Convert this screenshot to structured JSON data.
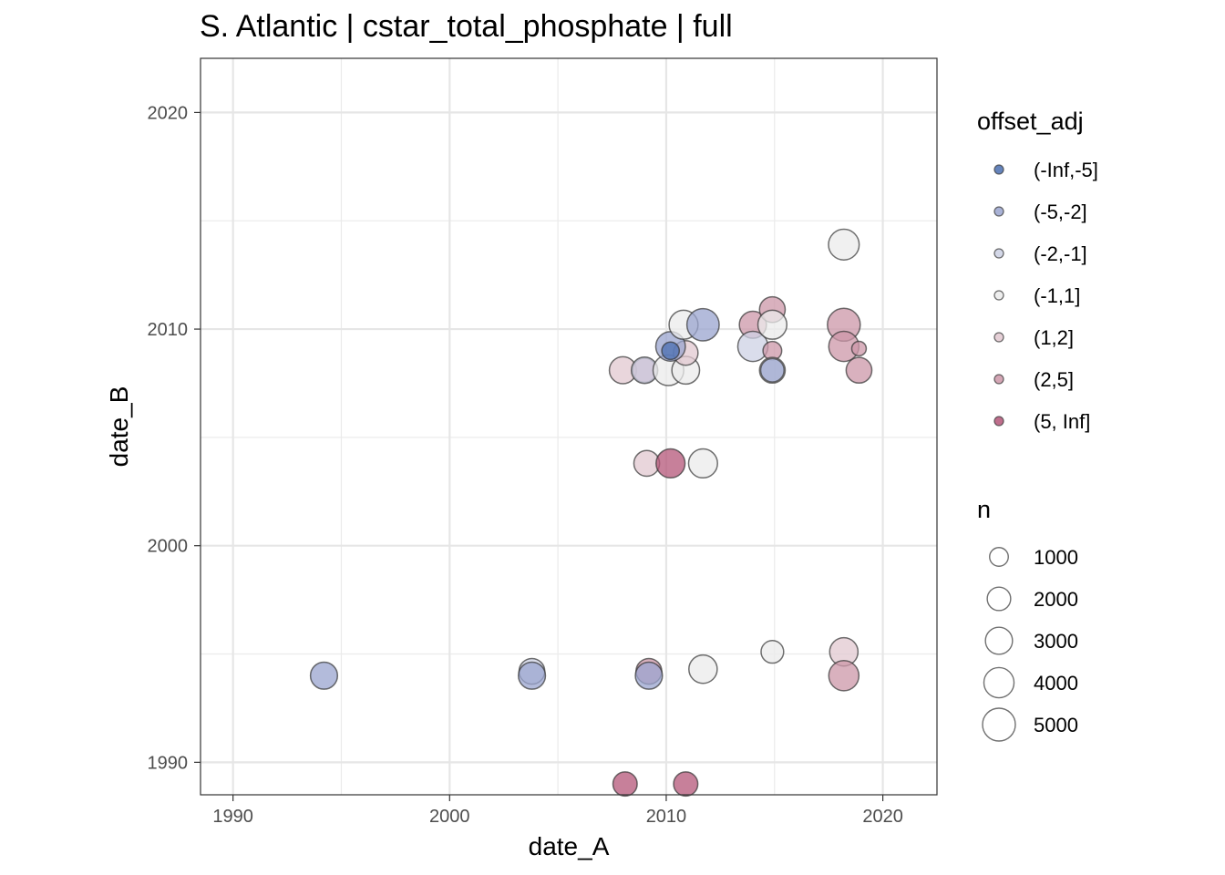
{
  "chart_data": {
    "type": "scatter",
    "title": "S. Atlantic | cstar_total_phosphate | full",
    "xlabel": "date_A",
    "ylabel": "date_B",
    "xlim": [
      1988.5,
      2022.5
    ],
    "ylim": [
      1988.5,
      2022.5
    ],
    "x_ticks": [
      "1990",
      "2000",
      "2010",
      "2020"
    ],
    "y_ticks": [
      "1990",
      "2000",
      "2010",
      "2020"
    ],
    "grid": true,
    "legend_color": {
      "title": "offset_adj",
      "placement": "right",
      "entries": [
        {
          "label": "(-Inf,-5]",
          "color": "#4a6eb0"
        },
        {
          "label": "(-5,-2]",
          "color": "#9aa4cf"
        },
        {
          "label": "(-2,-1]",
          "color": "#cdd1e4"
        },
        {
          "label": "(-1,1]",
          "color": "#ebebeb"
        },
        {
          "label": "(1,2]",
          "color": "#e2c8d0"
        },
        {
          "label": "(2,5]",
          "color": "#cc97a8"
        },
        {
          "label": "(5, Inf]",
          "color": "#b45578"
        }
      ]
    },
    "legend_size": {
      "title": "n",
      "placement": "right",
      "entries": [
        {
          "label": "1000",
          "value": 1000
        },
        {
          "label": "2000",
          "value": 2000
        },
        {
          "label": "3000",
          "value": 3000
        },
        {
          "label": "4000",
          "value": 4000
        },
        {
          "label": "5000",
          "value": 5000
        }
      ]
    },
    "points": [
      {
        "x": 1994.2,
        "y": 1994.0,
        "n": 3000,
        "group": "(-5,-2]"
      },
      {
        "x": 2003.8,
        "y": 1994.2,
        "n": 2600,
        "group": "(-2,-1]"
      },
      {
        "x": 2003.8,
        "y": 1994.0,
        "n": 3000,
        "group": "(-5,-2]"
      },
      {
        "x": 2008.1,
        "y": 1989.0,
        "n": 2200,
        "group": "(5, Inf]"
      },
      {
        "x": 2010.9,
        "y": 1989.0,
        "n": 2200,
        "group": "(5, Inf]"
      },
      {
        "x": 2009.2,
        "y": 1994.2,
        "n": 2600,
        "group": "(2,5]"
      },
      {
        "x": 2009.2,
        "y": 1994.0,
        "n": 3000,
        "group": "(-5,-2]"
      },
      {
        "x": 2011.7,
        "y": 1994.3,
        "n": 3400,
        "group": "(-1,1]"
      },
      {
        "x": 2014.9,
        "y": 1995.1,
        "n": 1800,
        "group": "(-1,1]"
      },
      {
        "x": 2018.2,
        "y": 1995.1,
        "n": 3400,
        "group": "(1,2]"
      },
      {
        "x": 2018.2,
        "y": 1994.0,
        "n": 4000,
        "group": "(2,5]"
      },
      {
        "x": 2009.1,
        "y": 2003.8,
        "n": 2600,
        "group": "(1,2]"
      },
      {
        "x": 2010.2,
        "y": 2003.8,
        "n": 3600,
        "group": "(5, Inf]"
      },
      {
        "x": 2011.7,
        "y": 2003.8,
        "n": 3600,
        "group": "(-1,1]"
      },
      {
        "x": 2008.0,
        "y": 2008.1,
        "n": 3000,
        "group": "(1,2]"
      },
      {
        "x": 2009.0,
        "y": 2008.1,
        "n": 2200,
        "group": "(2,5]"
      },
      {
        "x": 2009.0,
        "y": 2008.1,
        "n": 2800,
        "group": "(-2,-1]"
      },
      {
        "x": 2010.1,
        "y": 2008.1,
        "n": 4200,
        "group": "(-1,1]"
      },
      {
        "x": 2010.9,
        "y": 2008.1,
        "n": 3200,
        "group": "(-1,1]"
      },
      {
        "x": 2010.9,
        "y": 2008.9,
        "n": 2300,
        "group": "(1,2]"
      },
      {
        "x": 2010.2,
        "y": 2009.2,
        "n": 3800,
        "group": "(-5,-2]"
      },
      {
        "x": 2010.2,
        "y": 2009.0,
        "n": 800,
        "group": "(-Inf,-5]"
      },
      {
        "x": 2010.8,
        "y": 2010.2,
        "n": 3600,
        "group": "(-1,1]"
      },
      {
        "x": 2011.7,
        "y": 2010.2,
        "n": 4800,
        "group": "(-5,-2]"
      },
      {
        "x": 2014.0,
        "y": 2010.2,
        "n": 3000,
        "group": "(2,5]"
      },
      {
        "x": 2014.0,
        "y": 2009.2,
        "n": 4000,
        "group": "(-2,-1]"
      },
      {
        "x": 2014.9,
        "y": 2010.9,
        "n": 2600,
        "group": "(2,5]"
      },
      {
        "x": 2014.9,
        "y": 2010.2,
        "n": 3600,
        "group": "(-1,1]"
      },
      {
        "x": 2014.9,
        "y": 2009.0,
        "n": 1000,
        "group": "(2,5]"
      },
      {
        "x": 2014.9,
        "y": 2008.1,
        "n": 2600,
        "group": "(-1,1]"
      },
      {
        "x": 2014.9,
        "y": 2008.1,
        "n": 2000,
        "group": "(-5,-2]"
      },
      {
        "x": 2018.2,
        "y": 2013.9,
        "n": 4200,
        "group": "(-1,1]"
      },
      {
        "x": 2018.2,
        "y": 2010.2,
        "n": 5000,
        "group": "(2,5]"
      },
      {
        "x": 2018.2,
        "y": 2009.2,
        "n": 4000,
        "group": "(2,5]"
      },
      {
        "x": 2018.9,
        "y": 2009.1,
        "n": 400,
        "group": "(2,5]"
      },
      {
        "x": 2018.9,
        "y": 2008.1,
        "n": 2600,
        "group": "(2,5]"
      }
    ]
  }
}
